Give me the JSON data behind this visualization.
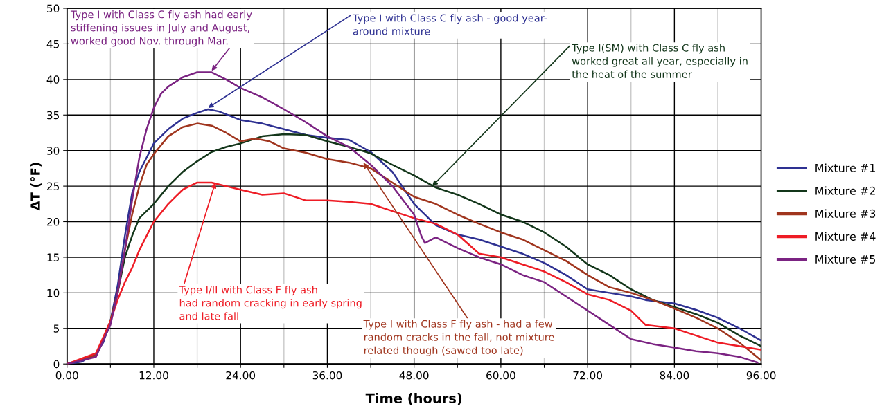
{
  "chart_data": {
    "type": "line",
    "xlabel": "Time (hours)",
    "ylabel": "ΔT (°F)",
    "xlim": [
      0,
      96
    ],
    "ylim": [
      0,
      50
    ],
    "xticks": [
      {
        "value": 0,
        "label": "0.00"
      },
      {
        "value": 6,
        "label": null
      },
      {
        "value": 12,
        "label": "12.00"
      },
      {
        "value": 18,
        "label": null
      },
      {
        "value": 24,
        "label": "24.00"
      },
      {
        "value": 30,
        "label": null
      },
      {
        "value": 36,
        "label": "36.00"
      },
      {
        "value": 42,
        "label": null
      },
      {
        "value": 48,
        "label": "48.00"
      },
      {
        "value": 54,
        "label": null
      },
      {
        "value": 60,
        "label": "60.00"
      },
      {
        "value": 66,
        "label": null
      },
      {
        "value": 72,
        "label": "72.00"
      },
      {
        "value": 78,
        "label": null
      },
      {
        "value": 84,
        "label": "84.00"
      },
      {
        "value": 90,
        "label": null
      },
      {
        "value": 96,
        "label": "96.00"
      }
    ],
    "yticks": [
      0,
      5,
      10,
      15,
      20,
      25,
      30,
      35,
      40,
      45,
      50
    ],
    "grid": true,
    "legend": "right",
    "marker": "none",
    "line_style": "solid",
    "series": [
      {
        "name": "Mixture #1",
        "color": "#2e3192",
        "x": [
          0,
          2,
          4,
          5,
          6,
          7,
          8,
          9,
          10,
          11,
          12,
          14,
          16,
          18,
          19.5,
          21,
          24,
          27,
          30,
          33,
          36,
          39,
          42,
          45,
          48,
          51,
          54,
          57,
          60,
          63,
          66,
          69,
          72,
          75,
          78,
          80,
          84,
          87,
          90,
          93,
          96
        ],
        "values": [
          0,
          0.3,
          1.5,
          3,
          6,
          11,
          18,
          24,
          27,
          29,
          31,
          33,
          34.5,
          35.3,
          35.8,
          35.5,
          34.3,
          33.8,
          33,
          32.2,
          31.8,
          31.5,
          29.8,
          27,
          22.5,
          19.5,
          18.2,
          17.5,
          16.5,
          15.5,
          14.2,
          12.5,
          10.5,
          10,
          9.5,
          9,
          8.5,
          7.6,
          6.5,
          5,
          3.3
        ]
      },
      {
        "name": "Mixture #2",
        "color": "#13361a",
        "x": [
          0,
          4,
          6,
          7,
          8,
          9,
          10,
          12,
          14,
          16,
          18,
          20,
          22,
          24,
          27,
          30,
          33,
          36,
          39,
          42,
          45,
          48,
          51,
          54,
          57,
          60,
          63,
          66,
          69,
          72,
          75,
          78,
          81,
          84,
          87,
          90,
          93,
          96
        ],
        "values": [
          0,
          1.2,
          6,
          10,
          15,
          18,
          20.5,
          22.5,
          25,
          27,
          28.5,
          29.8,
          30.5,
          31,
          32,
          32.3,
          32.2,
          31.3,
          30.5,
          29.6,
          28,
          26.5,
          24.8,
          23.8,
          22.5,
          21,
          20,
          18.5,
          16.5,
          14,
          12.5,
          10.5,
          9,
          8,
          7,
          5.8,
          4,
          2.5
        ]
      },
      {
        "name": "Mixture #3",
        "color": "#a0351e",
        "x": [
          0,
          4,
          6,
          7,
          8,
          9,
          10,
          11,
          12,
          14,
          16,
          18,
          20,
          22,
          24,
          26,
          28,
          30,
          33,
          36,
          39,
          42,
          45,
          48,
          51,
          54,
          57,
          60,
          63,
          66,
          69,
          72,
          75,
          78,
          81,
          84,
          87,
          90,
          93,
          96
        ],
        "values": [
          0,
          1.2,
          6,
          10,
          16,
          21,
          25,
          28,
          29.5,
          32,
          33.3,
          33.8,
          33.5,
          32.5,
          31.3,
          31.7,
          31.3,
          30.3,
          29.7,
          28.8,
          28.3,
          27.5,
          25.5,
          23.5,
          22.5,
          21,
          19.7,
          18.5,
          17.5,
          16,
          14.5,
          12.5,
          10.8,
          10,
          9,
          7.8,
          6.5,
          5,
          3,
          0.5
        ]
      },
      {
        "name": "Mixture #4",
        "color": "#ee1c25",
        "x": [
          0,
          4,
          6,
          7,
          8,
          9,
          10,
          12,
          14,
          16,
          18,
          20,
          22,
          24,
          27,
          30,
          33,
          36,
          39,
          42,
          45,
          48,
          51,
          54,
          57,
          60,
          63,
          66,
          69,
          72,
          75,
          78,
          80,
          84,
          87,
          90,
          93,
          96
        ],
        "values": [
          0,
          1.5,
          6,
          9,
          11.5,
          13.5,
          16,
          20,
          22.5,
          24.5,
          25.5,
          25.5,
          25,
          24.5,
          23.8,
          24,
          23,
          23,
          22.8,
          22.5,
          21.5,
          20.5,
          19.7,
          18.2,
          15.5,
          15,
          14,
          13,
          11.5,
          9.8,
          9,
          7.5,
          5.5,
          5,
          4,
          3,
          2.5,
          2
        ]
      },
      {
        "name": "Mixture #5",
        "color": "#7b2382",
        "x": [
          0,
          4,
          6,
          7,
          8,
          9,
          10,
          11,
          12,
          13,
          14,
          16,
          18,
          20,
          22,
          24,
          27,
          30,
          33,
          36,
          39,
          42,
          45,
          48,
          49,
          49.5,
          51,
          54,
          57,
          60,
          63,
          66,
          69,
          72,
          75,
          78,
          81,
          84,
          87,
          90,
          93,
          95.5
        ],
        "values": [
          0,
          1,
          5.5,
          10,
          16,
          23,
          29,
          33,
          36,
          38,
          39,
          40.3,
          41,
          41,
          40,
          38.8,
          37.5,
          35.8,
          34,
          32,
          30.5,
          28,
          25,
          21,
          18,
          17,
          17.8,
          16.3,
          15,
          14,
          12.5,
          11.5,
          9.5,
          7.5,
          5.5,
          3.5,
          2.8,
          2.3,
          1.8,
          1.5,
          1,
          0.2
        ]
      }
    ],
    "annotations": [
      {
        "text": "Type I with Class C fly ash had early\nstiffening issues in July and August,\nworked good Nov. through Mar.",
        "x": 20,
        "y": 41.2
      },
      {
        "text": "Type I with Class C fly ash - good year-\naround mixture",
        "x": 19.5,
        "y": 36
      },
      {
        "text": "Type I(SM) with Class C fly ash\nworked great all year, especially in\nthe heat of the summer",
        "x": 50.5,
        "y": 25
      },
      {
        "text": "Type I/II with Class F fly ash\nhad random cracking in early spring\nand late fall",
        "x": 20.5,
        "y": 25.5
      },
      {
        "text": "Type I with Class F fly ash - had a few\nrandom cracks in the fall, not mixture\nrelated though (sawed too late)",
        "x": 41,
        "y": 28.3
      }
    ]
  }
}
